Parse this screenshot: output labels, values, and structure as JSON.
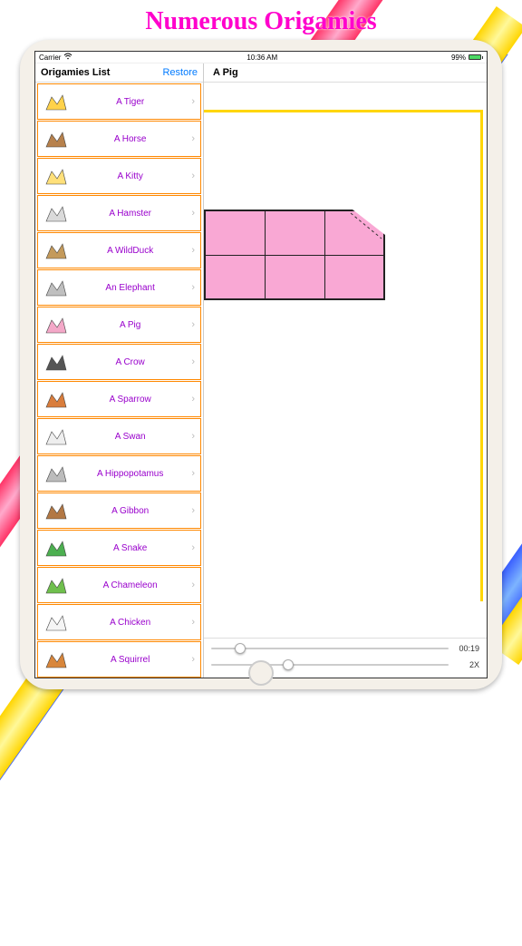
{
  "page": {
    "title": "Numerous Origamies"
  },
  "statusbar": {
    "carrier": "Carrier",
    "time": "10:36 AM",
    "battery_pct": "99%"
  },
  "sidebar": {
    "title": "Origamies List",
    "restore": "Restore",
    "items": [
      {
        "label": "A Tiger",
        "thumb_color": "#ffd24a"
      },
      {
        "label": "A Horse",
        "thumb_color": "#b7814c"
      },
      {
        "label": "A Kitty",
        "thumb_color": "#ffe07a"
      },
      {
        "label": "A Hamster",
        "thumb_color": "#dadada"
      },
      {
        "label": "A WildDuck",
        "thumb_color": "#c49a5b"
      },
      {
        "label": "An Elephant",
        "thumb_color": "#bfbfbf"
      },
      {
        "label": "A Pig",
        "thumb_color": "#f4a8c8"
      },
      {
        "label": "A Crow",
        "thumb_color": "#555555"
      },
      {
        "label": "A Sparrow",
        "thumb_color": "#d97d3c"
      },
      {
        "label": "A Swan",
        "thumb_color": "#eeeeee"
      },
      {
        "label": "A Hippopotamus",
        "thumb_color": "#bcbcbc"
      },
      {
        "label": "A Gibbon",
        "thumb_color": "#b37844"
      },
      {
        "label": "A Snake",
        "thumb_color": "#4caf50"
      },
      {
        "label": "A Chameleon",
        "thumb_color": "#6fbf4d"
      },
      {
        "label": "A Chicken",
        "thumb_color": "#f5f5f5"
      },
      {
        "label": "A Squirrel",
        "thumb_color": "#d8863b"
      }
    ]
  },
  "detail": {
    "title": "A Pig",
    "diagram": {
      "paper_color": "#f9a8d4",
      "outline_color": "#222222",
      "grid_cols": 3,
      "grid_rows": 2,
      "fold_dashes": true
    },
    "frame_color": "#ffd600",
    "controls": {
      "time_label": "00:19",
      "time_progress": 0.1,
      "speed_label": "2X",
      "speed_progress": 0.3
    }
  },
  "colors": {
    "title": "#ff00cc",
    "bezel": "#f4f0e9",
    "accent_link": "#007aff",
    "item_border": "#ff8800",
    "item_text": "#9900cc"
  }
}
